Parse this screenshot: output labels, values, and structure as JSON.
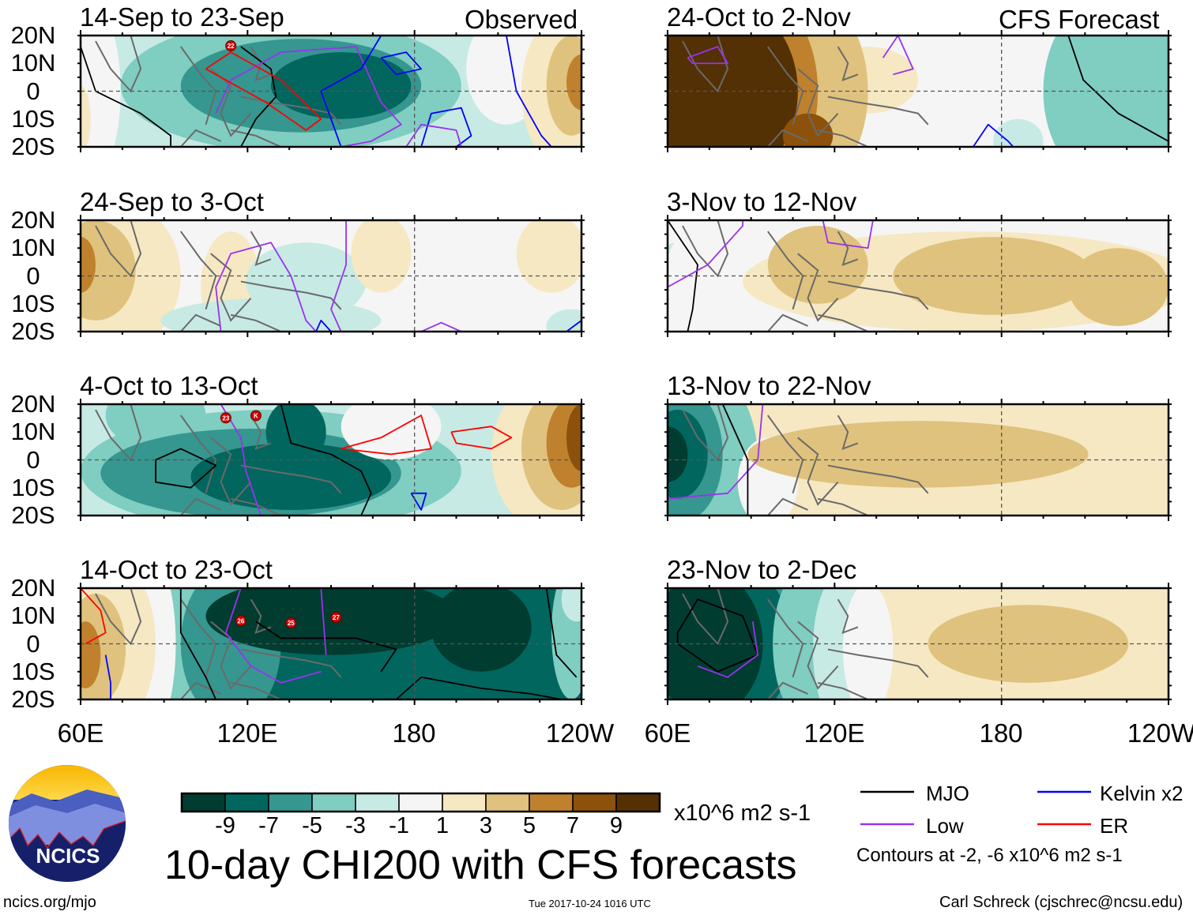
{
  "figure": {
    "title": "10-day CHI200 with CFS forecasts",
    "units": "x10^6 m2 s-1",
    "website": "ncics.org/mjo",
    "timestamp": "Tue 2017-10-24 1016 UTC",
    "author": "Carl Schreck (cjschrec@ncsu.edu)",
    "logo_text": "NCICS",
    "observed_label": "Observed",
    "forecast_label": "CFS Forecast"
  },
  "panels": [
    {
      "title": "14-Sep to 23-Sep",
      "type": "observed",
      "storms": [
        "22"
      ]
    },
    {
      "title": "24-Sep to 3-Oct",
      "type": "observed",
      "storms": []
    },
    {
      "title": "4-Oct to 13-Oct",
      "type": "observed",
      "storms": [
        "23",
        "K"
      ]
    },
    {
      "title": "14-Oct to 23-Oct",
      "type": "observed",
      "storms": [
        "26",
        "25",
        "27"
      ]
    },
    {
      "title": "24-Oct to 2-Nov",
      "type": "forecast",
      "storms": []
    },
    {
      "title": "3-Nov to 12-Nov",
      "type": "forecast",
      "storms": []
    },
    {
      "title": "13-Nov to 22-Nov",
      "type": "forecast",
      "storms": []
    },
    {
      "title": "23-Nov to 2-Dec",
      "type": "forecast",
      "storms": []
    }
  ],
  "axes": {
    "lat_labels": [
      "20N",
      "10N",
      "0",
      "10S",
      "20S"
    ],
    "lon_labels": [
      "60E",
      "120E",
      "180",
      "120W"
    ]
  },
  "colorbar": {
    "colors": [
      "#003c30",
      "#01665e",
      "#35978f",
      "#80cdc1",
      "#c7eae5",
      "#f5f5f5",
      "#f6e8c3",
      "#dfc27d",
      "#bf812d",
      "#8c510a",
      "#543005"
    ],
    "labels": [
      "-9",
      "-7",
      "-5",
      "-3",
      "-1",
      "1",
      "3",
      "5",
      "7",
      "9"
    ]
  },
  "legend": {
    "items": [
      {
        "label": "MJO",
        "color": "#000000"
      },
      {
        "label": "Kelvin x2",
        "color": "#0000ff"
      },
      {
        "label": "Low",
        "color": "#9a32f0"
      },
      {
        "label": "ER",
        "color": "#ff0000"
      }
    ],
    "note": "Contours at -2, -6 x10^6 m2 s-1"
  }
}
